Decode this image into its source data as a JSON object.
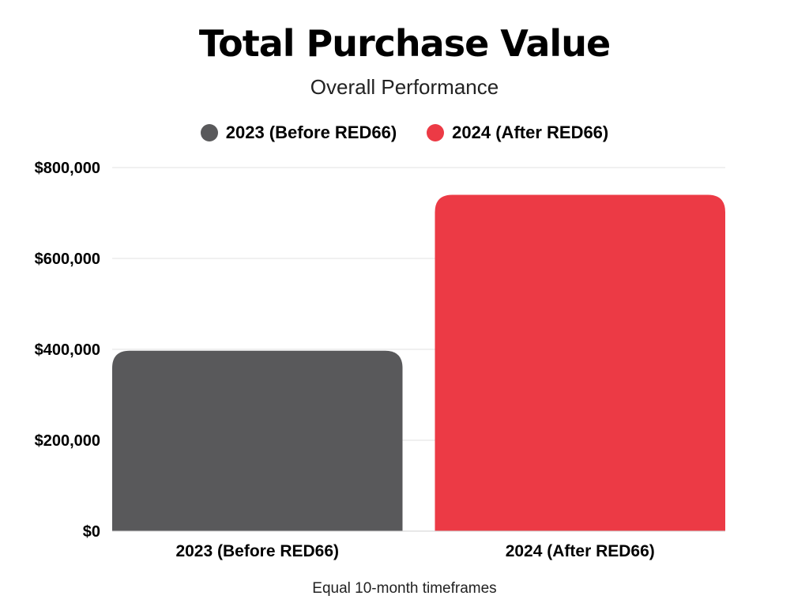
{
  "chart_data": {
    "type": "bar",
    "title": "Total Purchase Value",
    "subtitle": "Overall Performance",
    "categories": [
      "2023 (Before RED66)",
      "2024 (After RED66)"
    ],
    "values": [
      397000,
      740000
    ],
    "colors": [
      "#59595b",
      "#ec3a45"
    ],
    "legend": [
      {
        "label": "2023 (Before RED66)",
        "color": "#59595b"
      },
      {
        "label": "2024 (After RED66)",
        "color": "#ec3a45"
      }
    ],
    "y_ticks": [
      0,
      200000,
      400000,
      600000,
      800000
    ],
    "y_tick_labels": [
      "$0",
      "$200,000",
      "$400,000",
      "$600,000",
      "$800,000"
    ],
    "ylim": [
      0,
      800000
    ],
    "grid": true,
    "legend_position": "top-center",
    "caption": "Equal 10-month timeframes",
    "xlabel": "",
    "ylabel": ""
  }
}
